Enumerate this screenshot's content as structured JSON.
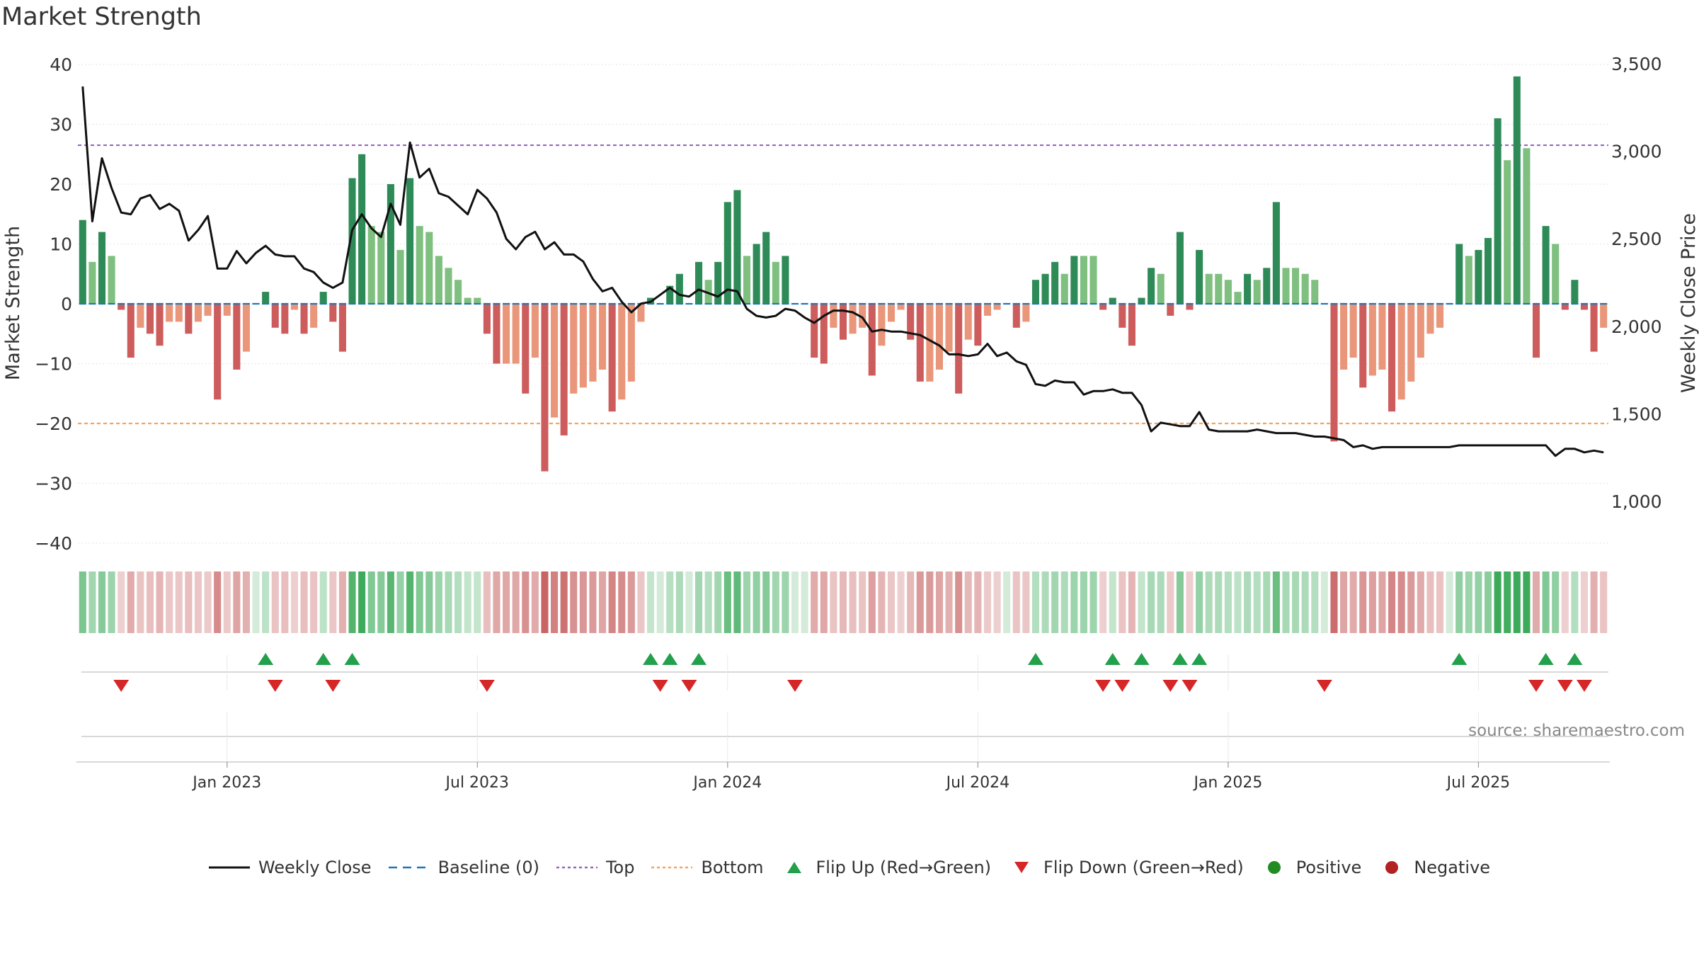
{
  "title": "Market Strength",
  "source": "source: sharemaestro.com",
  "legend": [
    {
      "key": "close",
      "label": "Weekly Close",
      "color": "#111111"
    },
    {
      "key": "baseline",
      "label": "Baseline (0)",
      "color": "#1f77b4"
    },
    {
      "key": "top",
      "label": "Top",
      "color": "#9467bd"
    },
    {
      "key": "bottom",
      "label": "Bottom",
      "color": "#f4a460"
    },
    {
      "key": "flip_up",
      "label": "Flip Up (Red→Green)",
      "color": "#22a04b"
    },
    {
      "key": "flip_down",
      "label": "Flip Down (Green→Red)",
      "color": "#d62728"
    },
    {
      "key": "positive",
      "label": "Positive",
      "color": "#228b22"
    },
    {
      "key": "negative",
      "label": "Negative",
      "color": "#b22222"
    }
  ],
  "chart_data": {
    "type": "bar",
    "ylabel": "Market Strength",
    "y2label": "Weekly Close Price",
    "ylim": [
      -40,
      40
    ],
    "y2lim": [
      700,
      3500
    ],
    "yticks": [
      "40",
      "30",
      "20",
      "10",
      "0",
      "−10",
      "−20",
      "−30",
      "−40"
    ],
    "y2ticks": [
      "3,500",
      "3,000",
      "2,500",
      "2,000",
      "1,500",
      "1,000"
    ],
    "x_ticks": [
      "Jan 2023",
      "Jul 2023",
      "Jan 2024",
      "Jul 2024",
      "Jan 2025",
      "Jul 2025"
    ],
    "top_line": 26.5,
    "bottom_line": -20,
    "strength": [
      14,
      7,
      12,
      8,
      -1,
      -9,
      -4,
      -5,
      -7,
      -3,
      -3,
      -5,
      -3,
      -2,
      -16,
      -2,
      -11,
      -8,
      0,
      2,
      -4,
      -5,
      -1,
      -5,
      -4,
      2,
      -3,
      -8,
      21,
      25,
      13,
      12,
      20,
      9,
      21,
      13,
      12,
      8,
      6,
      4,
      1,
      1,
      -5,
      -10,
      -10,
      -10,
      -15,
      -9,
      -28,
      -19,
      -22,
      -15,
      -14,
      -13,
      -11,
      -18,
      -16,
      -13,
      -3,
      1,
      0,
      3,
      5,
      0,
      7,
      4,
      7,
      17,
      19,
      8,
      10,
      12,
      7,
      8,
      0,
      0,
      -9,
      -10,
      -4,
      -6,
      -5,
      -4,
      -12,
      -7,
      -3,
      -1,
      -6,
      -13,
      -13,
      -11,
      -8,
      -15,
      -6,
      -7,
      -2,
      -1,
      0,
      -4,
      -3,
      4,
      5,
      7,
      5,
      8,
      8,
      8,
      -1,
      1,
      -4,
      -7,
      1,
      6,
      5,
      -2,
      12,
      -1,
      9,
      5,
      5,
      4,
      2,
      5,
      4,
      6,
      17,
      6,
      6,
      5,
      4,
      0,
      -23,
      -11,
      -9,
      -14,
      -12,
      -11,
      -18,
      -16,
      -13,
      -9,
      -5,
      -4,
      0,
      10,
      8,
      9,
      11,
      31,
      24,
      38,
      26,
      -9,
      13,
      10,
      -1,
      4,
      -1,
      -8,
      -4
    ],
    "close": [
      3370,
      2600,
      2960,
      2790,
      2650,
      2640,
      2730,
      2750,
      2670,
      2700,
      2660,
      2490,
      2550,
      2630,
      2330,
      2330,
      2430,
      2360,
      2420,
      2460,
      2410,
      2400,
      2400,
      2330,
      2310,
      2250,
      2220,
      2250,
      2550,
      2640,
      2560,
      2510,
      2700,
      2580,
      3050,
      2850,
      2900,
      2760,
      2740,
      2690,
      2640,
      2780,
      2730,
      2650,
      2500,
      2440,
      2510,
      2540,
      2440,
      2480,
      2410,
      2410,
      2370,
      2270,
      2200,
      2220,
      2140,
      2080,
      2130,
      2140,
      2180,
      2220,
      2180,
      2170,
      2210,
      2190,
      2170,
      2210,
      2200,
      2100,
      2060,
      2050,
      2060,
      2100,
      2090,
      2050,
      2020,
      2060,
      2090,
      2090,
      2080,
      2050,
      1970,
      1980,
      1970,
      1970,
      1960,
      1950,
      1920,
      1890,
      1840,
      1840,
      1830,
      1840,
      1900,
      1830,
      1850,
      1800,
      1780,
      1670,
      1660,
      1690,
      1680,
      1680,
      1610,
      1630,
      1630,
      1640,
      1620,
      1620,
      1550,
      1400,
      1450,
      1440,
      1430,
      1430,
      1510,
      1410,
      1400,
      1400,
      1400,
      1400,
      1410,
      1400,
      1390,
      1390,
      1390,
      1380,
      1370,
      1370,
      1360,
      1350,
      1310,
      1320,
      1300,
      1310,
      1310,
      1310,
      1310,
      1310,
      1310,
      1310,
      1310,
      1320,
      1320,
      1320,
      1320,
      1320,
      1320,
      1320,
      1320,
      1320,
      1320,
      1260,
      1300,
      1300,
      1280,
      1290,
      1280,
      1270,
      1280
    ]
  }
}
